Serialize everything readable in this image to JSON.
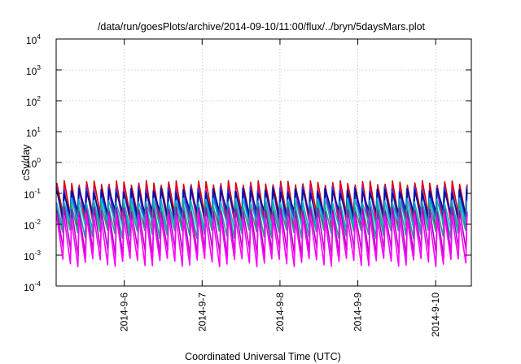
{
  "chart_data": {
    "type": "line",
    "title": "/data/run/goesPlots/archive/2014-09-10/11:00/flux/../bryn/5daysMars.plot",
    "xlabel": "Coordinated Universal Time (UTC)",
    "ylabel": "cSv/day",
    "yscale": "log",
    "ylim": [
      0.0001,
      10000
    ],
    "xlim": [
      "2014-09-05 03:00",
      "2014-09-10 11:00"
    ],
    "y_tick_labels": [
      {
        "base": "10",
        "exp": "-4"
      },
      {
        "base": "10",
        "exp": "-3"
      },
      {
        "base": "10",
        "exp": "-2"
      },
      {
        "base": "10",
        "exp": "-1"
      },
      {
        "base": "10",
        "exp": "0"
      },
      {
        "base": "10",
        "exp": "1"
      },
      {
        "base": "10",
        "exp": "2"
      },
      {
        "base": "10",
        "exp": "3"
      },
      {
        "base": "10",
        "exp": "4"
      }
    ],
    "x_tick_labels": [
      "2014-9-6",
      "2014-9-7",
      "2014-9-8",
      "2014-9-9",
      "2014-9-10"
    ],
    "grid": true,
    "sawtooth_period_hours": 2.3,
    "series": [
      {
        "color": "#d40000",
        "peak": 0.22,
        "trough": 0.015
      },
      {
        "color": "#e0007a",
        "peak": 0.16,
        "trough": 0.009
      },
      {
        "color": "#1f3fe0",
        "peak": 0.14,
        "trough": 0.018
      },
      {
        "color": "#0a0a9a",
        "peak": 0.12,
        "trough": 0.02
      },
      {
        "color": "#00b4d8",
        "peak": 0.06,
        "trough": 0.009
      },
      {
        "color": "#1aa38f",
        "peak": 0.045,
        "trough": 0.005
      },
      {
        "color": "#b000c0",
        "peak": 0.03,
        "trough": 0.0012
      },
      {
        "color": "#ff00ff",
        "peak": 0.018,
        "trough": 0.0006
      }
    ]
  }
}
